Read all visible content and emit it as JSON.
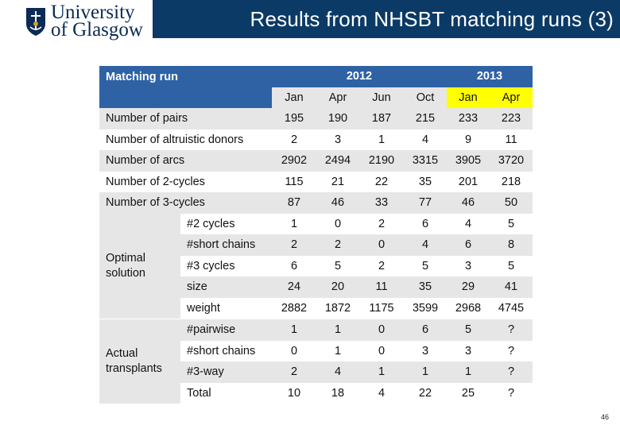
{
  "header": {
    "logo_line1": "University",
    "logo_line2": "of Glasgow",
    "title": "Results from NHSBT matching runs (3)"
  },
  "table": {
    "corner_label": "Matching run",
    "years": [
      {
        "label": "2012"
      },
      {
        "label": "2013"
      }
    ],
    "months": [
      "Jan",
      "Apr",
      "Jun",
      "Oct",
      "Jan",
      "Apr"
    ],
    "simple_rows": [
      {
        "label": "Number of pairs",
        "values": [
          "195",
          "190",
          "187",
          "215",
          "233",
          "223"
        ]
      },
      {
        "label": "Number of altruistic donors",
        "values": [
          "2",
          "3",
          "1",
          "4",
          "9",
          "11"
        ]
      },
      {
        "label": "Number of arcs",
        "values": [
          "2902",
          "2494",
          "2190",
          "3315",
          "3905",
          "3720"
        ]
      },
      {
        "label": "Number of 2-cycles",
        "values": [
          "115",
          "21",
          "22",
          "35",
          "201",
          "218"
        ]
      },
      {
        "label": "Number of 3-cycles",
        "values": [
          "87",
          "46",
          "33",
          "77",
          "46",
          "50"
        ]
      }
    ],
    "groups": [
      {
        "label_l1": "Optimal",
        "label_l2": "solution",
        "rows": [
          {
            "label": "#2 cycles",
            "values": [
              "1",
              "0",
              "2",
              "6",
              "4",
              "5"
            ]
          },
          {
            "label": "#short chains",
            "values": [
              "2",
              "2",
              "0",
              "4",
              "6",
              "8"
            ]
          },
          {
            "label": "#3 cycles",
            "values": [
              "6",
              "5",
              "2",
              "5",
              "3",
              "5"
            ]
          },
          {
            "label": "size",
            "values": [
              "24",
              "20",
              "11",
              "35",
              "29",
              "41"
            ]
          },
          {
            "label": "weight",
            "values": [
              "2882",
              "1872",
              "1175",
              "3599",
              "2968",
              "4745"
            ]
          }
        ]
      },
      {
        "label_l1": "Actual",
        "label_l2": "transplants",
        "rows": [
          {
            "label": "#pairwise",
            "values": [
              "1",
              "1",
              "0",
              "6",
              "5",
              "?"
            ]
          },
          {
            "label": "#short chains",
            "values": [
              "0",
              "1",
              "0",
              "3",
              "3",
              "?"
            ]
          },
          {
            "label": "#3-way",
            "values": [
              "2",
              "4",
              "1",
              "1",
              "1",
              "?"
            ]
          },
          {
            "label": "Total",
            "values": [
              "10",
              "18",
              "4",
              "22",
              "25",
              "?"
            ]
          }
        ]
      }
    ]
  },
  "page_number": "46",
  "colors": {
    "title_bar": "#0b3a66",
    "table_header": "#2f62a5",
    "band": "#e6e6e6",
    "highlight": "#ffff00"
  }
}
